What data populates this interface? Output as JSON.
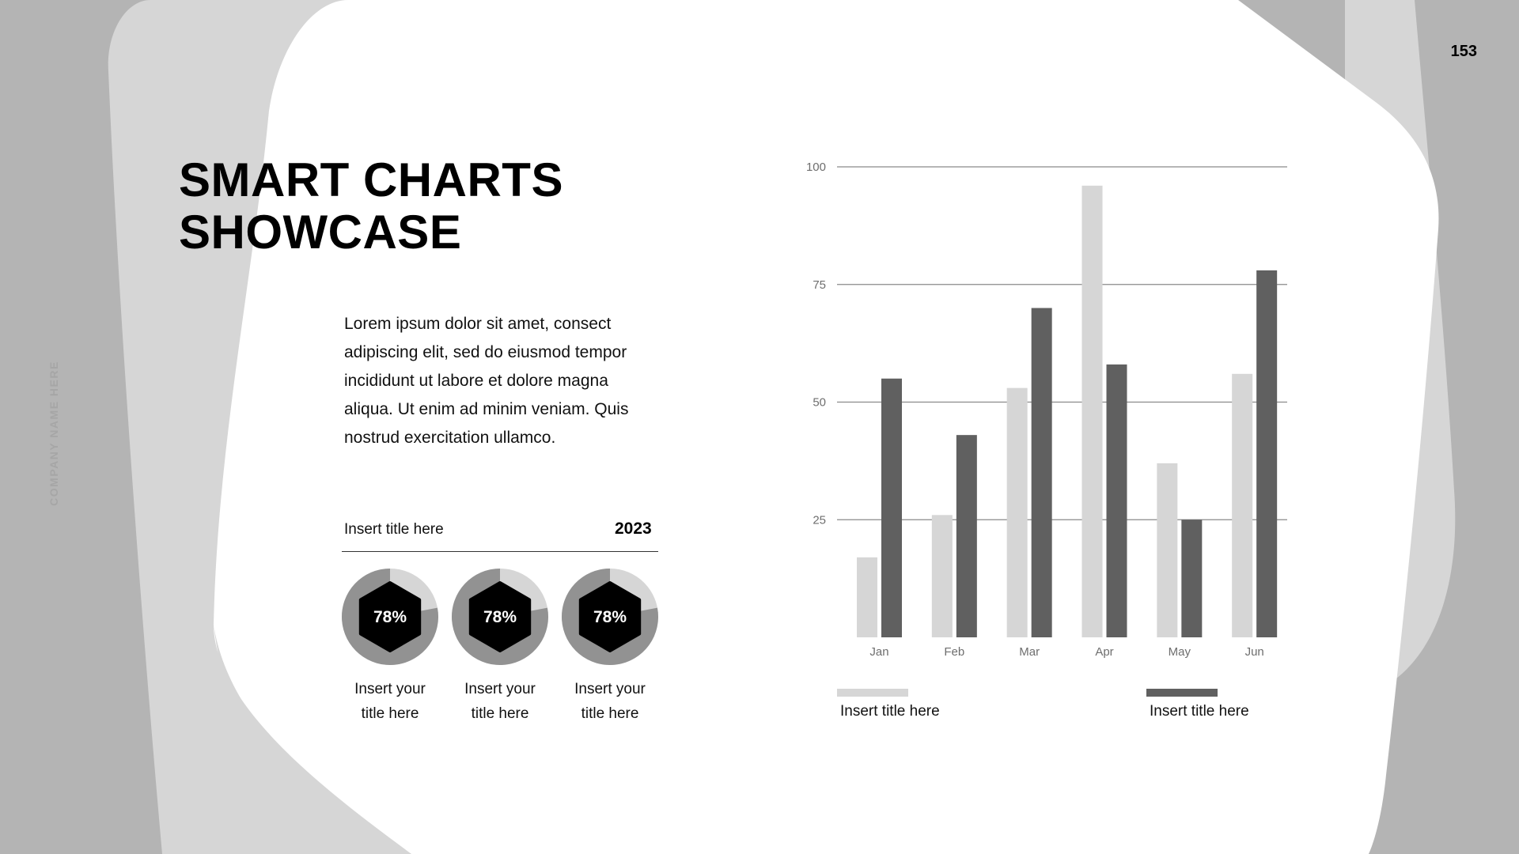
{
  "page_number": "153",
  "company": "COMPANY NAME HERE",
  "title_lines": [
    "SMART CHARTS",
    "SHOWCASE"
  ],
  "body_text": "Lorem ipsum dolor sit amet, consect adipiscing elit, sed do eiusmod tempor incididunt ut labore et dolore magna aliqua. Ut enim ad minim veniam.  Quis nostrud exercitation ullamco.",
  "info": {
    "title": "Insert title here",
    "year": "2023"
  },
  "donuts": [
    {
      "percent": 78,
      "label": "78%",
      "caption_line1": "Insert your",
      "caption_line2": "title here"
    },
    {
      "percent": 78,
      "label": "78%",
      "caption_line1": "Insert your",
      "caption_line2": "title here"
    },
    {
      "percent": 78,
      "label": "78%",
      "caption_line1": "Insert your",
      "caption_line2": "title here"
    }
  ],
  "colors": {
    "background": "#b4b4b4",
    "light_shape": "#d6d6d6",
    "card": "#ffffff",
    "series_light": "#d6d6d6",
    "series_dark": "#606060",
    "donut_ring": "#929292",
    "donut_rest": "#d6d6d6",
    "hexagon": "#000000"
  },
  "chart_data": {
    "type": "bar",
    "categories": [
      "Jan",
      "Feb",
      "Mar",
      "Apr",
      "May",
      "Jun"
    ],
    "series": [
      {
        "name": "Insert title here",
        "color": "#d6d6d6",
        "values": [
          17,
          26,
          53,
          96,
          37,
          56
        ]
      },
      {
        "name": "Insert title here",
        "color": "#606060",
        "values": [
          55,
          43,
          70,
          58,
          25,
          78
        ]
      }
    ],
    "yticks": [
      25,
      50,
      75,
      100
    ],
    "ylim": [
      0,
      100
    ],
    "grid": true,
    "legend": "bottom"
  }
}
